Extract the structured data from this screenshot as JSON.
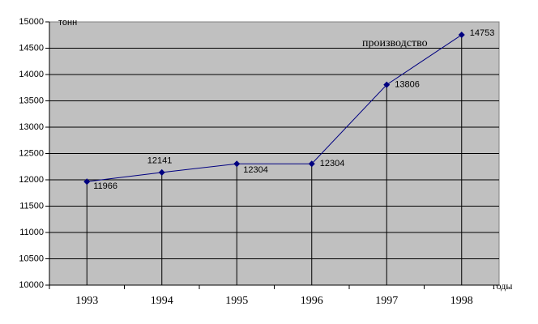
{
  "chart_data": {
    "type": "line",
    "y_label": "тонн",
    "x_label": "годы",
    "categories": [
      "1993",
      "1994",
      "1995",
      "1996",
      "1997",
      "1998"
    ],
    "series": [
      {
        "name": "производство",
        "color": "#000080",
        "values": [
          11966,
          12141,
          12304,
          12304,
          13806,
          14753
        ]
      }
    ],
    "ylim": [
      10000,
      15000
    ],
    "yticks": [
      10000,
      10500,
      11000,
      11500,
      12000,
      12500,
      13000,
      13500,
      14000,
      14500,
      15000
    ],
    "grid": true,
    "drop_lines": true,
    "plot_background": "#c0c0c0"
  }
}
